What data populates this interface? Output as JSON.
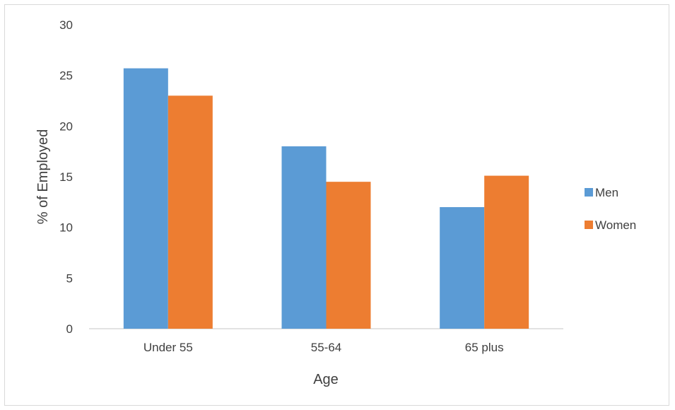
{
  "chart_data": {
    "type": "bar",
    "title": "",
    "xlabel": "Age",
    "ylabel": "% of Employed",
    "categories": [
      "Under 55",
      "55-64",
      "65 plus"
    ],
    "series": [
      {
        "name": "Men",
        "values": [
          25.7,
          18.0,
          12.0
        ],
        "color": "#5b9bd5"
      },
      {
        "name": "Women",
        "values": [
          23.0,
          14.5,
          15.1
        ],
        "color": "#ed7d31"
      }
    ],
    "ylim": [
      0,
      30
    ],
    "yticks": [
      "0",
      "5",
      "10",
      "15",
      "20",
      "25",
      "30"
    ],
    "grid": false,
    "legend_position": "right"
  }
}
